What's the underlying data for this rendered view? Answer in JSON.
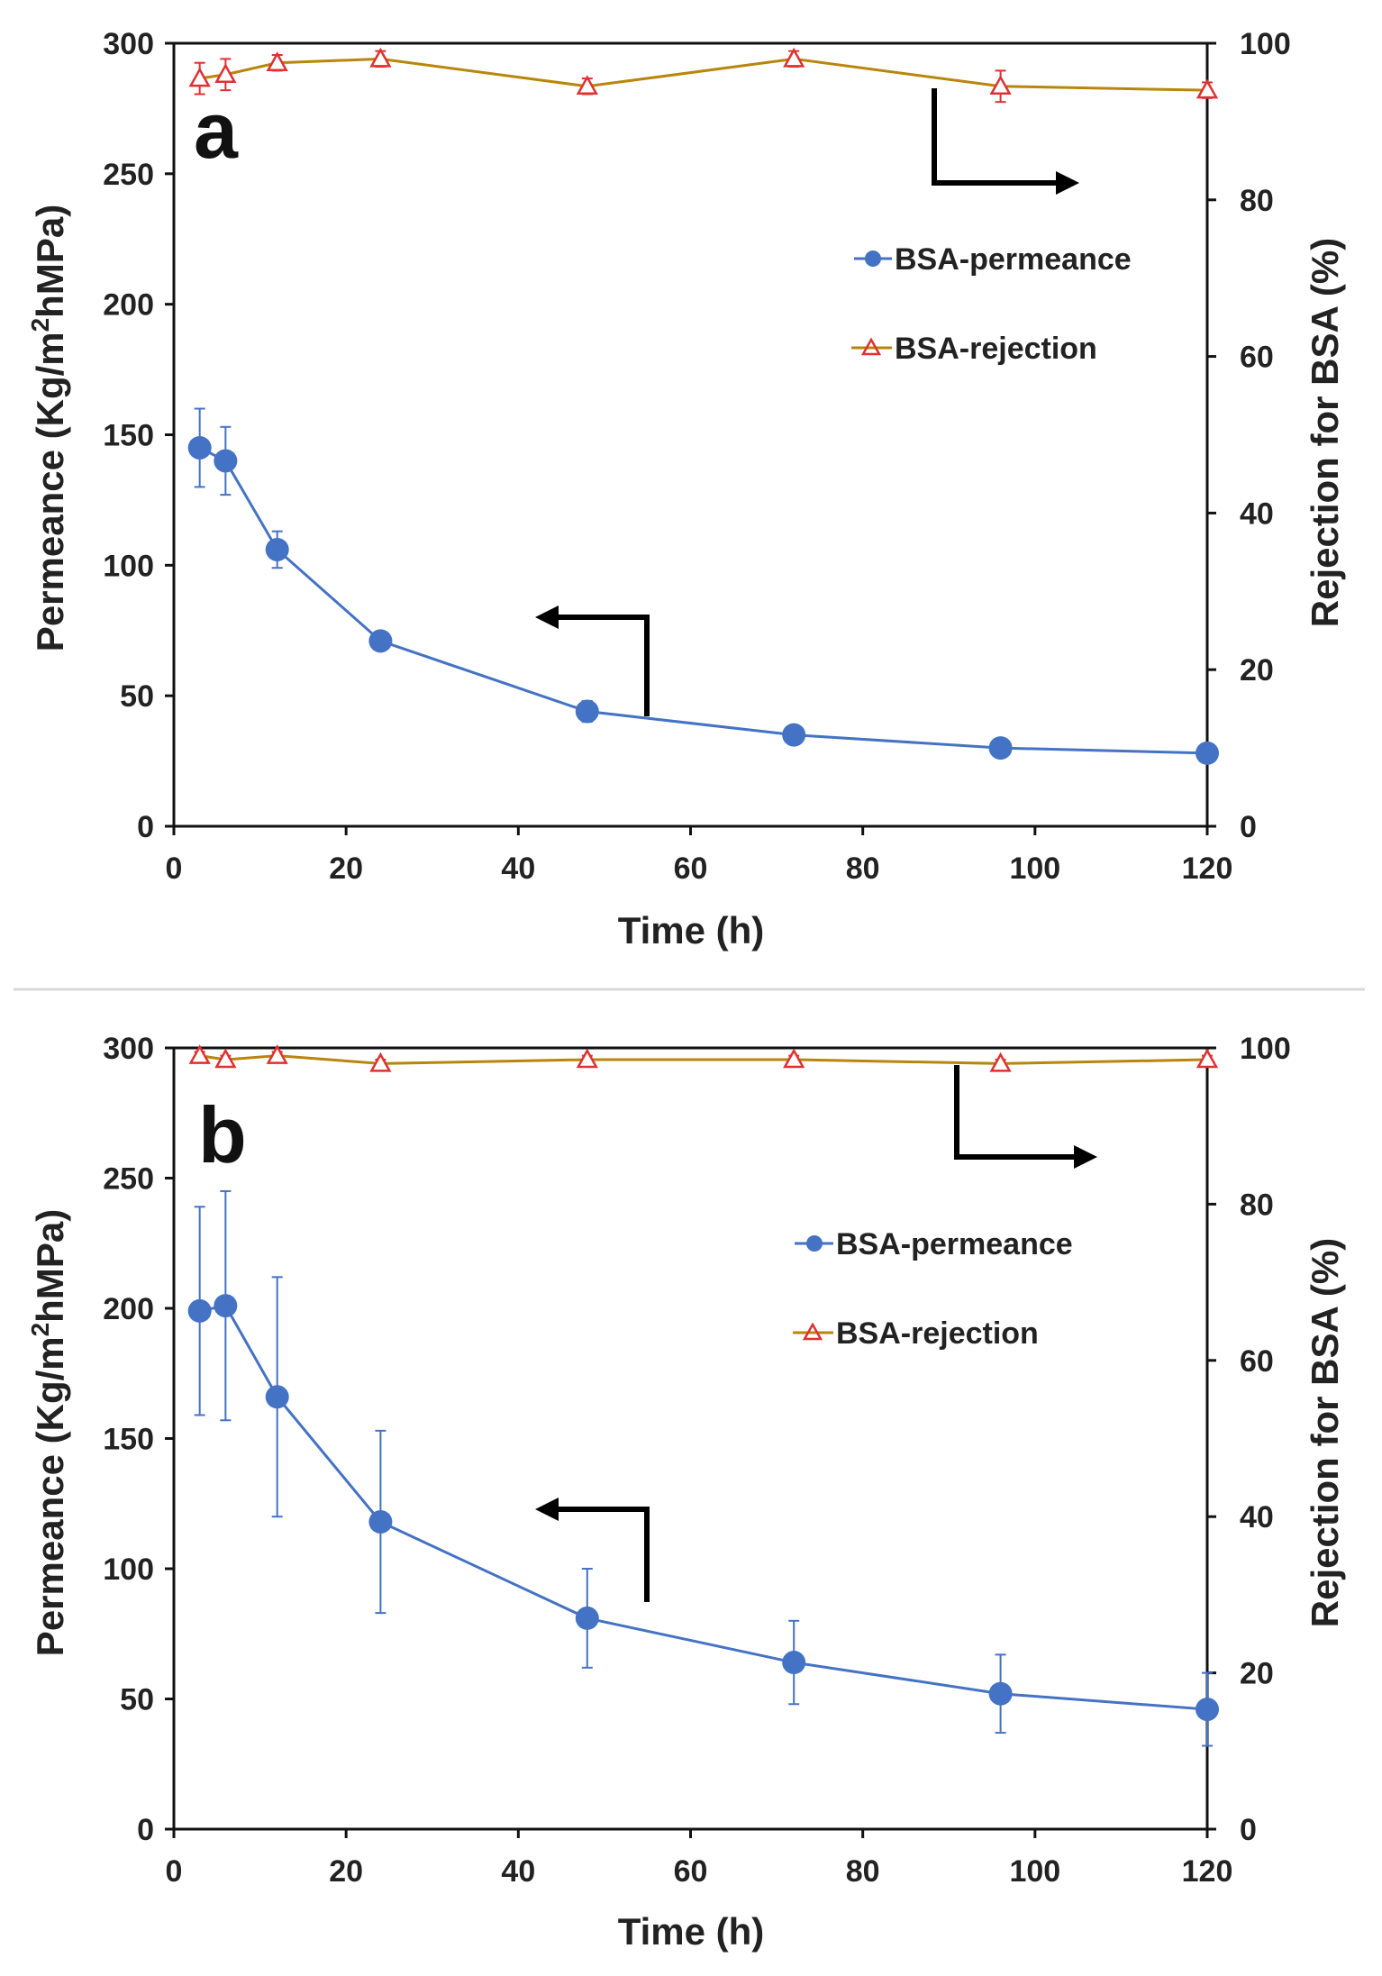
{
  "colors": {
    "permeance": "#4472C4",
    "rejection_line": "#B8860B",
    "rejection_marker": "#E03030",
    "axis": "#111111",
    "divider": "#d8d8d8"
  },
  "chart_data": [
    {
      "type": "line",
      "panel_label": "a",
      "xlabel": "Time (h)",
      "ylabel_left": "Permeance (Kg/m2hMPa)",
      "ylabel_left_parts": [
        "Permeance (Kg/m",
        "2",
        "hMPa)"
      ],
      "ylabel_right": "Rejection for BSA (%)",
      "xlim": [
        0,
        120
      ],
      "ylim_left": [
        0,
        300
      ],
      "ylim_right": [
        0,
        100
      ],
      "x_ticks": [
        "0",
        "20",
        "40",
        "60",
        "80",
        "100",
        "120"
      ],
      "y_left_ticks": [
        "0",
        "50",
        "100",
        "150",
        "200",
        "250",
        "300"
      ],
      "y_right_ticks": [
        "0",
        "20",
        "40",
        "60",
        "80",
        "100"
      ],
      "legend": [
        "BSA-permeance",
        "BSA-rejection"
      ],
      "series": [
        {
          "name": "BSA-permeance",
          "axis": "left",
          "x": [
            3,
            6,
            12,
            24,
            48,
            72,
            96,
            120
          ],
          "values": [
            145,
            140,
            106,
            71,
            44,
            35,
            30,
            28
          ],
          "error": [
            15,
            13,
            7,
            3,
            4,
            3,
            2,
            2
          ]
        },
        {
          "name": "BSA-rejection",
          "axis": "right",
          "x": [
            3,
            6,
            12,
            24,
            48,
            72,
            96,
            120
          ],
          "values": [
            95.5,
            96,
            97.5,
            98,
            94.5,
            98,
            94.5,
            94
          ],
          "error": [
            2,
            2,
            1,
            1,
            1,
            1,
            2,
            1
          ]
        }
      ]
    },
    {
      "type": "line",
      "panel_label": "b",
      "xlabel": "Time (h)",
      "ylabel_left": "Permeance (Kg/m2hMPa)",
      "ylabel_left_parts": [
        "Permeance (Kg/m",
        "2",
        "hMPa)"
      ],
      "ylabel_right": "Rejection for BSA (%)",
      "xlim": [
        0,
        120
      ],
      "ylim_left": [
        0,
        300
      ],
      "ylim_right": [
        0,
        100
      ],
      "x_ticks": [
        "0",
        "20",
        "40",
        "60",
        "80",
        "100",
        "120"
      ],
      "y_left_ticks": [
        "0",
        "50",
        "100",
        "150",
        "200",
        "250",
        "300"
      ],
      "y_right_ticks": [
        "0",
        "20",
        "40",
        "60",
        "80",
        "100"
      ],
      "legend": [
        "BSA-permeance",
        "BSA-rejection"
      ],
      "series": [
        {
          "name": "BSA-permeance",
          "axis": "left",
          "x": [
            3,
            6,
            12,
            24,
            48,
            72,
            96,
            120
          ],
          "values": [
            199,
            201,
            166,
            118,
            81,
            64,
            52,
            46
          ],
          "error": [
            40,
            44,
            46,
            35,
            19,
            16,
            15,
            14
          ]
        },
        {
          "name": "BSA-rejection",
          "axis": "right",
          "x": [
            3,
            6,
            12,
            24,
            48,
            72,
            96,
            120
          ],
          "values": [
            99,
            98.5,
            99,
            98,
            98.5,
            98.5,
            98,
            98.5
          ],
          "error": [
            0.5,
            0.5,
            0.5,
            0.5,
            0.5,
            0.5,
            0.5,
            0.5
          ]
        }
      ]
    }
  ]
}
